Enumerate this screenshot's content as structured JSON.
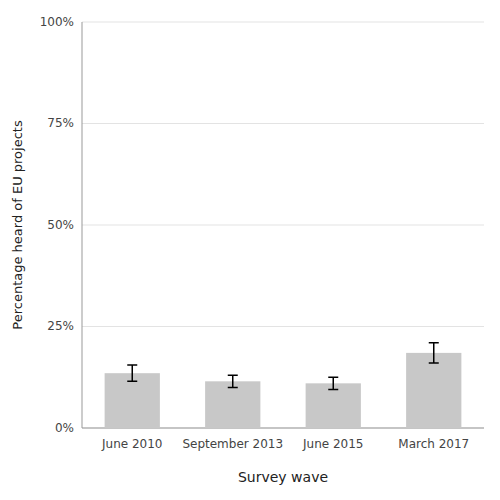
{
  "chart_data": {
    "type": "bar",
    "categories": [
      "June 2010",
      "September 2013",
      "June 2015",
      "March 2017"
    ],
    "values": [
      0.135,
      0.115,
      0.11,
      0.185
    ],
    "errors": [
      0.02,
      0.015,
      0.015,
      0.025
    ],
    "color": "#c8c8c8",
    "xlabel": "Survey wave",
    "ylabel": "Percentage heard of EU projects",
    "ylim": [
      0,
      1.0
    ],
    "yticks": [
      {
        "value": 0,
        "label": "0%"
      },
      {
        "value": 0.25,
        "label": "25%"
      },
      {
        "value": 0.5,
        "label": "50%"
      },
      {
        "value": 0.75,
        "label": "75%"
      },
      {
        "value": 1.0,
        "label": "100%"
      }
    ],
    "grid": true
  }
}
